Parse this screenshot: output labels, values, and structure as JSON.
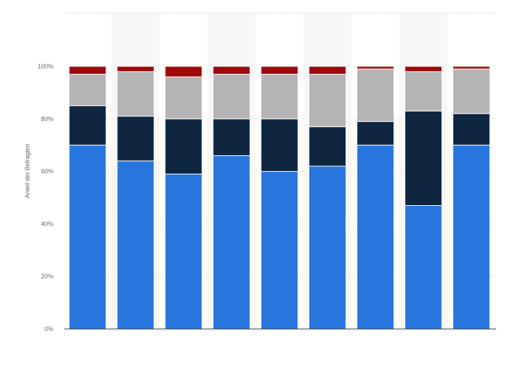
{
  "chart_data": {
    "type": "bar",
    "stacked": true,
    "title": "",
    "xlabel": "",
    "ylabel": "Anteil der Befragten",
    "ylim": [
      0,
      100
    ],
    "y_ticks": [
      "0%",
      "20%",
      "40%",
      "60%",
      "80%",
      "100%"
    ],
    "grid": true,
    "legend": "none",
    "categories": [
      "",
      "",
      "",
      "",
      "",
      "",
      "",
      "",
      ""
    ],
    "series": [
      {
        "color": "#2876dd",
        "values": [
          70,
          64,
          59,
          66,
          60,
          62,
          70,
          47,
          70
        ]
      },
      {
        "color": "#0f2641",
        "values": [
          15,
          17,
          21,
          14,
          20,
          15,
          9,
          36,
          12
        ]
      },
      {
        "color": "#b4b4b4",
        "values": [
          12,
          17,
          16,
          17,
          17,
          20,
          20,
          15,
          17
        ]
      },
      {
        "color": "#a10a0a",
        "values": [
          3,
          2,
          4,
          3,
          3,
          3,
          1,
          2,
          1
        ]
      }
    ]
  }
}
